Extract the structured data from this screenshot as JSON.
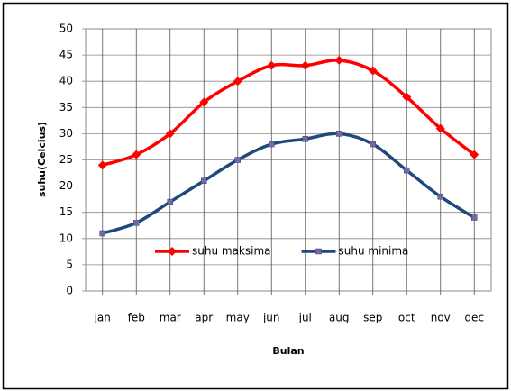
{
  "chart_data": {
    "type": "line",
    "x_label": "Bulan",
    "y_label": "suhu(Celcius)",
    "categories": [
      "jan",
      "feb",
      "mar",
      "apr",
      "may",
      "jun",
      "jul",
      "aug",
      "sep",
      "oct",
      "nov",
      "dec"
    ],
    "series": [
      {
        "name": "suhu maksima",
        "color": "#ff0000",
        "marker": "diamond",
        "values": [
          24,
          26,
          30,
          36,
          40,
          43,
          43,
          44,
          42,
          37,
          31,
          26
        ]
      },
      {
        "name": "suhu minima",
        "color": "#1f497d",
        "marker": "square",
        "values": [
          11,
          13,
          17,
          21,
          25,
          28,
          29,
          30,
          28,
          23,
          18,
          14
        ]
      }
    ],
    "ylim": [
      0,
      50
    ],
    "yticks": [
      0,
      5,
      10,
      15,
      20,
      25,
      30,
      35,
      40,
      45,
      50
    ],
    "grid": true,
    "smooth": true,
    "legend": "inside-bottom"
  }
}
